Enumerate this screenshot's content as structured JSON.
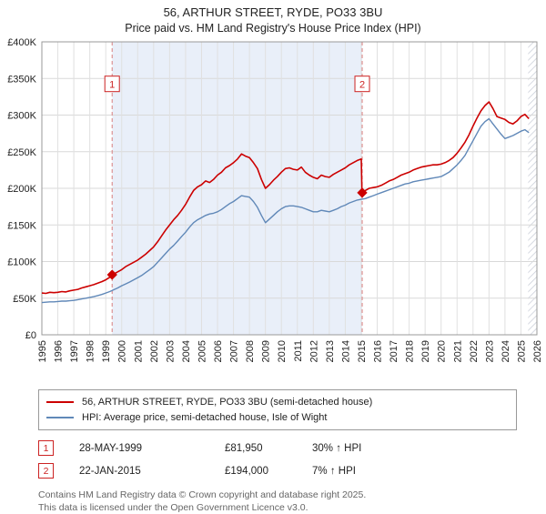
{
  "title": "56, ARTHUR STREET, RYDE, PO33 3BU",
  "subtitle": "Price paid vs. HM Land Registry's House Price Index (HPI)",
  "chart_data": {
    "type": "line",
    "xlim": [
      1995,
      2026
    ],
    "ylim": [
      0,
      400000
    ],
    "grid": true,
    "legend_position": "bottom",
    "yticks": [
      {
        "value": 0,
        "label": "£0"
      },
      {
        "value": 50000,
        "label": "£50K"
      },
      {
        "value": 100000,
        "label": "£100K"
      },
      {
        "value": 150000,
        "label": "£150K"
      },
      {
        "value": 200000,
        "label": "£200K"
      },
      {
        "value": 250000,
        "label": "£250K"
      },
      {
        "value": 300000,
        "label": "£300K"
      },
      {
        "value": 350000,
        "label": "£350K"
      },
      {
        "value": 400000,
        "label": "£400K"
      }
    ],
    "xticks": [
      1995,
      1996,
      1997,
      1998,
      1999,
      2000,
      2001,
      2002,
      2003,
      2004,
      2005,
      2006,
      2007,
      2008,
      2009,
      2010,
      2011,
      2012,
      2013,
      2014,
      2015,
      2016,
      2017,
      2018,
      2019,
      2020,
      2021,
      2022,
      2023,
      2024,
      2025,
      2026
    ],
    "shade": {
      "from": 1999.4,
      "to": 2015.06,
      "color": "#e9eff9"
    },
    "hatch_from": 2025.45,
    "markers": [
      {
        "label": "1",
        "x": 1999.4,
        "y": 81950
      },
      {
        "label": "2",
        "x": 2015.06,
        "y": 194000
      }
    ],
    "series": [
      {
        "name": "56, ARTHUR STREET, RYDE, PO33 3BU (semi-detached house)",
        "color": "#cc0000",
        "width": 1.6,
        "points": [
          [
            1995.0,
            57000
          ],
          [
            1995.25,
            56500
          ],
          [
            1995.5,
            58000
          ],
          [
            1995.75,
            57500
          ],
          [
            1996.0,
            58000
          ],
          [
            1996.25,
            59000
          ],
          [
            1996.5,
            58500
          ],
          [
            1996.75,
            60000
          ],
          [
            1997.0,
            61000
          ],
          [
            1997.25,
            62000
          ],
          [
            1997.5,
            64000
          ],
          [
            1997.75,
            65500
          ],
          [
            1998.0,
            67000
          ],
          [
            1998.25,
            68500
          ],
          [
            1998.5,
            70500
          ],
          [
            1998.75,
            72500
          ],
          [
            1999.0,
            75000
          ],
          [
            1999.25,
            78500
          ],
          [
            1999.4,
            81950
          ],
          [
            1999.5,
            83000
          ],
          [
            1999.75,
            86000
          ],
          [
            2000.0,
            89000
          ],
          [
            2000.25,
            93000
          ],
          [
            2000.5,
            96000
          ],
          [
            2000.75,
            99000
          ],
          [
            2001.0,
            102000
          ],
          [
            2001.25,
            106000
          ],
          [
            2001.5,
            110000
          ],
          [
            2001.75,
            115000
          ],
          [
            2002.0,
            120000
          ],
          [
            2002.25,
            127000
          ],
          [
            2002.5,
            135000
          ],
          [
            2002.75,
            143000
          ],
          [
            2003.0,
            150000
          ],
          [
            2003.25,
            157000
          ],
          [
            2003.5,
            163000
          ],
          [
            2003.75,
            170000
          ],
          [
            2004.0,
            178000
          ],
          [
            2004.25,
            188000
          ],
          [
            2004.5,
            197000
          ],
          [
            2004.75,
            202000
          ],
          [
            2005.0,
            205000
          ],
          [
            2005.25,
            210000
          ],
          [
            2005.5,
            208000
          ],
          [
            2005.75,
            212000
          ],
          [
            2006.0,
            218000
          ],
          [
            2006.25,
            222000
          ],
          [
            2006.5,
            228000
          ],
          [
            2006.75,
            231000
          ],
          [
            2007.0,
            235000
          ],
          [
            2007.25,
            240000
          ],
          [
            2007.5,
            247000
          ],
          [
            2007.75,
            244000
          ],
          [
            2008.0,
            242000
          ],
          [
            2008.25,
            235000
          ],
          [
            2008.5,
            227000
          ],
          [
            2008.75,
            212000
          ],
          [
            2009.0,
            200000
          ],
          [
            2009.25,
            205000
          ],
          [
            2009.5,
            211000
          ],
          [
            2009.75,
            216000
          ],
          [
            2010.0,
            222000
          ],
          [
            2010.25,
            227000
          ],
          [
            2010.5,
            228000
          ],
          [
            2010.75,
            226000
          ],
          [
            2011.0,
            225000
          ],
          [
            2011.25,
            229000
          ],
          [
            2011.5,
            222000
          ],
          [
            2011.75,
            218000
          ],
          [
            2012.0,
            215000
          ],
          [
            2012.25,
            213000
          ],
          [
            2012.5,
            218000
          ],
          [
            2012.75,
            216000
          ],
          [
            2013.0,
            215000
          ],
          [
            2013.25,
            219000
          ],
          [
            2013.5,
            222000
          ],
          [
            2013.75,
            225000
          ],
          [
            2014.0,
            228000
          ],
          [
            2014.25,
            232000
          ],
          [
            2014.5,
            235000
          ],
          [
            2014.75,
            238000
          ],
          [
            2015.0,
            240000
          ],
          [
            2015.05,
            194000
          ],
          [
            2015.25,
            197000
          ],
          [
            2015.5,
            200000
          ],
          [
            2015.75,
            201000
          ],
          [
            2016.0,
            202000
          ],
          [
            2016.25,
            204000
          ],
          [
            2016.5,
            207000
          ],
          [
            2016.75,
            210000
          ],
          [
            2017.0,
            212000
          ],
          [
            2017.25,
            215000
          ],
          [
            2017.5,
            218000
          ],
          [
            2017.75,
            220000
          ],
          [
            2018.0,
            222000
          ],
          [
            2018.25,
            225000
          ],
          [
            2018.5,
            227000
          ],
          [
            2018.75,
            229000
          ],
          [
            2019.0,
            230000
          ],
          [
            2019.25,
            231000
          ],
          [
            2019.5,
            232000
          ],
          [
            2019.75,
            232000
          ],
          [
            2020.0,
            233000
          ],
          [
            2020.25,
            235000
          ],
          [
            2020.5,
            238000
          ],
          [
            2020.75,
            242000
          ],
          [
            2021.0,
            248000
          ],
          [
            2021.25,
            255000
          ],
          [
            2021.5,
            263000
          ],
          [
            2021.75,
            273000
          ],
          [
            2022.0,
            285000
          ],
          [
            2022.25,
            296000
          ],
          [
            2022.5,
            306000
          ],
          [
            2022.75,
            313000
          ],
          [
            2023.0,
            318000
          ],
          [
            2023.25,
            309000
          ],
          [
            2023.5,
            298000
          ],
          [
            2023.75,
            296000
          ],
          [
            2024.0,
            294000
          ],
          [
            2024.25,
            290000
          ],
          [
            2024.5,
            288000
          ],
          [
            2024.75,
            292000
          ],
          [
            2025.0,
            298000
          ],
          [
            2025.25,
            301000
          ],
          [
            2025.5,
            295000
          ]
        ]
      },
      {
        "name": "HPI: Average price, semi-detached house, Isle of Wight",
        "color": "#6088b8",
        "width": 1.4,
        "points": [
          [
            1995.0,
            44000
          ],
          [
            1995.25,
            44500
          ],
          [
            1995.5,
            45000
          ],
          [
            1995.75,
            45000
          ],
          [
            1996.0,
            45500
          ],
          [
            1996.25,
            46000
          ],
          [
            1996.5,
            46000
          ],
          [
            1996.75,
            46500
          ],
          [
            1997.0,
            47000
          ],
          [
            1997.25,
            48000
          ],
          [
            1997.5,
            49000
          ],
          [
            1997.75,
            50000
          ],
          [
            1998.0,
            51000
          ],
          [
            1998.25,
            52000
          ],
          [
            1998.5,
            53500
          ],
          [
            1998.75,
            55000
          ],
          [
            1999.0,
            57000
          ],
          [
            1999.25,
            59000
          ],
          [
            1999.5,
            61500
          ],
          [
            1999.75,
            64000
          ],
          [
            2000.0,
            67000
          ],
          [
            2000.25,
            69500
          ],
          [
            2000.5,
            72000
          ],
          [
            2000.75,
            75000
          ],
          [
            2001.0,
            78000
          ],
          [
            2001.25,
            81000
          ],
          [
            2001.5,
            85000
          ],
          [
            2001.75,
            89000
          ],
          [
            2002.0,
            93000
          ],
          [
            2002.25,
            99000
          ],
          [
            2002.5,
            105000
          ],
          [
            2002.75,
            111000
          ],
          [
            2003.0,
            117000
          ],
          [
            2003.25,
            122000
          ],
          [
            2003.5,
            128000
          ],
          [
            2003.75,
            134000
          ],
          [
            2004.0,
            140000
          ],
          [
            2004.25,
            147000
          ],
          [
            2004.5,
            153000
          ],
          [
            2004.75,
            157000
          ],
          [
            2005.0,
            160000
          ],
          [
            2005.25,
            163000
          ],
          [
            2005.5,
            165000
          ],
          [
            2005.75,
            166000
          ],
          [
            2006.0,
            168000
          ],
          [
            2006.25,
            171000
          ],
          [
            2006.5,
            175000
          ],
          [
            2006.75,
            179000
          ],
          [
            2007.0,
            182000
          ],
          [
            2007.25,
            186000
          ],
          [
            2007.5,
            190000
          ],
          [
            2007.75,
            189000
          ],
          [
            2008.0,
            188000
          ],
          [
            2008.25,
            182000
          ],
          [
            2008.5,
            174000
          ],
          [
            2008.75,
            163000
          ],
          [
            2009.0,
            153000
          ],
          [
            2009.25,
            158000
          ],
          [
            2009.5,
            163000
          ],
          [
            2009.75,
            168000
          ],
          [
            2010.0,
            172000
          ],
          [
            2010.25,
            175000
          ],
          [
            2010.5,
            176000
          ],
          [
            2010.75,
            176000
          ],
          [
            2011.0,
            175000
          ],
          [
            2011.25,
            174000
          ],
          [
            2011.5,
            172000
          ],
          [
            2011.75,
            170000
          ],
          [
            2012.0,
            168000
          ],
          [
            2012.25,
            168000
          ],
          [
            2012.5,
            170000
          ],
          [
            2012.75,
            169000
          ],
          [
            2013.0,
            168000
          ],
          [
            2013.25,
            170000
          ],
          [
            2013.5,
            172000
          ],
          [
            2013.75,
            175000
          ],
          [
            2014.0,
            177000
          ],
          [
            2014.25,
            180000
          ],
          [
            2014.5,
            182000
          ],
          [
            2014.75,
            184000
          ],
          [
            2015.0,
            185000
          ],
          [
            2015.25,
            186000
          ],
          [
            2015.5,
            188000
          ],
          [
            2015.75,
            190000
          ],
          [
            2016.0,
            192000
          ],
          [
            2016.25,
            194000
          ],
          [
            2016.5,
            196000
          ],
          [
            2016.75,
            198000
          ],
          [
            2017.0,
            200000
          ],
          [
            2017.25,
            202000
          ],
          [
            2017.5,
            204000
          ],
          [
            2017.75,
            206000
          ],
          [
            2018.0,
            207000
          ],
          [
            2018.25,
            209000
          ],
          [
            2018.5,
            210000
          ],
          [
            2018.75,
            211000
          ],
          [
            2019.0,
            212000
          ],
          [
            2019.25,
            213000
          ],
          [
            2019.5,
            214000
          ],
          [
            2019.75,
            215000
          ],
          [
            2020.0,
            216000
          ],
          [
            2020.25,
            219000
          ],
          [
            2020.5,
            222000
          ],
          [
            2020.75,
            227000
          ],
          [
            2021.0,
            232000
          ],
          [
            2021.25,
            238000
          ],
          [
            2021.5,
            245000
          ],
          [
            2021.75,
            255000
          ],
          [
            2022.0,
            265000
          ],
          [
            2022.25,
            275000
          ],
          [
            2022.5,
            285000
          ],
          [
            2022.75,
            291000
          ],
          [
            2023.0,
            295000
          ],
          [
            2023.25,
            288000
          ],
          [
            2023.5,
            281000
          ],
          [
            2023.75,
            274000
          ],
          [
            2024.0,
            268000
          ],
          [
            2024.25,
            270000
          ],
          [
            2024.5,
            272000
          ],
          [
            2024.75,
            275000
          ],
          [
            2025.0,
            278000
          ],
          [
            2025.25,
            280000
          ],
          [
            2025.5,
            276000
          ]
        ]
      }
    ]
  },
  "legend": {
    "items": [
      {
        "label": "56, ARTHUR STREET, RYDE, PO33 3BU (semi-detached house)",
        "color": "#cc0000"
      },
      {
        "label": "HPI: Average price, semi-detached house, Isle of Wight",
        "color": "#6088b8"
      }
    ]
  },
  "annotations": [
    {
      "num": "1",
      "date": "28-MAY-1999",
      "price": "£81,950",
      "hpi": "30% ↑ HPI"
    },
    {
      "num": "2",
      "date": "22-JAN-2015",
      "price": "£194,000",
      "hpi": "7% ↑ HPI"
    }
  ],
  "footer": {
    "line1": "Contains HM Land Registry data © Crown copyright and database right 2025.",
    "line2": "This data is licensed under the Open Government Licence v3.0."
  }
}
